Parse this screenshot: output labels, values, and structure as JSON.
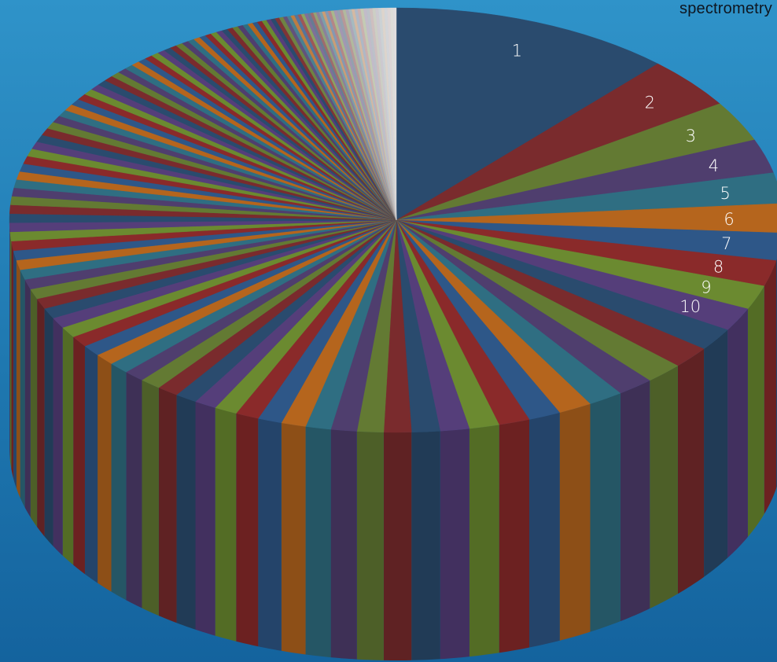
{
  "caption": "spectrometry",
  "chart_data": {
    "type": "pie",
    "style": "3d",
    "slice_count": 140,
    "labeled_slices": [
      "1",
      "2",
      "3",
      "4",
      "5",
      "6",
      "7",
      "8",
      "9",
      "10"
    ],
    "values": [
      9.6,
      3.2,
      2.5,
      2.1,
      1.9,
      1.8,
      1.7,
      1.6,
      1.5,
      1.45,
      1.4,
      1.35,
      1.3,
      1.25,
      1.2,
      1.15,
      1.1,
      1.06,
      1.02,
      0.99,
      0.96,
      0.93,
      0.9,
      0.88,
      0.86,
      0.84,
      0.82,
      0.8,
      0.78,
      0.76,
      0.75,
      0.74,
      0.73,
      0.72,
      0.71,
      0.7,
      0.69,
      0.68,
      0.67,
      0.66,
      0.65,
      0.64,
      0.63,
      0.62,
      0.61,
      0.6,
      0.59,
      0.58,
      0.57,
      0.56,
      0.55,
      0.54,
      0.53,
      0.52,
      0.51,
      0.5,
      0.49,
      0.48,
      0.47,
      0.46,
      0.45,
      0.44,
      0.43,
      0.42,
      0.41,
      0.4,
      0.39,
      0.38,
      0.37,
      0.36,
      0.35,
      0.34,
      0.33,
      0.32,
      0.31,
      0.3,
      0.29,
      0.28,
      0.27,
      0.26,
      0.25,
      0.245,
      0.24,
      0.235,
      0.23,
      0.225,
      0.22,
      0.215,
      0.21,
      0.205,
      0.2,
      0.195,
      0.19,
      0.185,
      0.18,
      0.175,
      0.17,
      0.165,
      0.16,
      0.155,
      0.15,
      0.145,
      0.14,
      0.135,
      0.13,
      0.125,
      0.12,
      0.115,
      0.11,
      0.105,
      0.1,
      0.1,
      0.1,
      0.1,
      0.1,
      0.1,
      0.1,
      0.1,
      0.1,
      0.1,
      0.1,
      0.1,
      0.1,
      0.1,
      0.1,
      0.1,
      0.1,
      0.1,
      0.1,
      0.1,
      0.1,
      0.1,
      0.1,
      0.1,
      0.1,
      0.1,
      0.1,
      0.1,
      0.1,
      0.1
    ],
    "palette": [
      "#2a4b6e",
      "#7a2b2d",
      "#637a33",
      "#4f3e6e",
      "#2f6e82",
      "#b5651d",
      "#2e5788",
      "#8a2a2a",
      "#6b8a30",
      "#553e7a"
    ],
    "fade_color": "#e2e0e0",
    "fade_from_slice": 100,
    "start_angle": "12 o'clock",
    "direction": "clockwise",
    "legend": "none"
  }
}
